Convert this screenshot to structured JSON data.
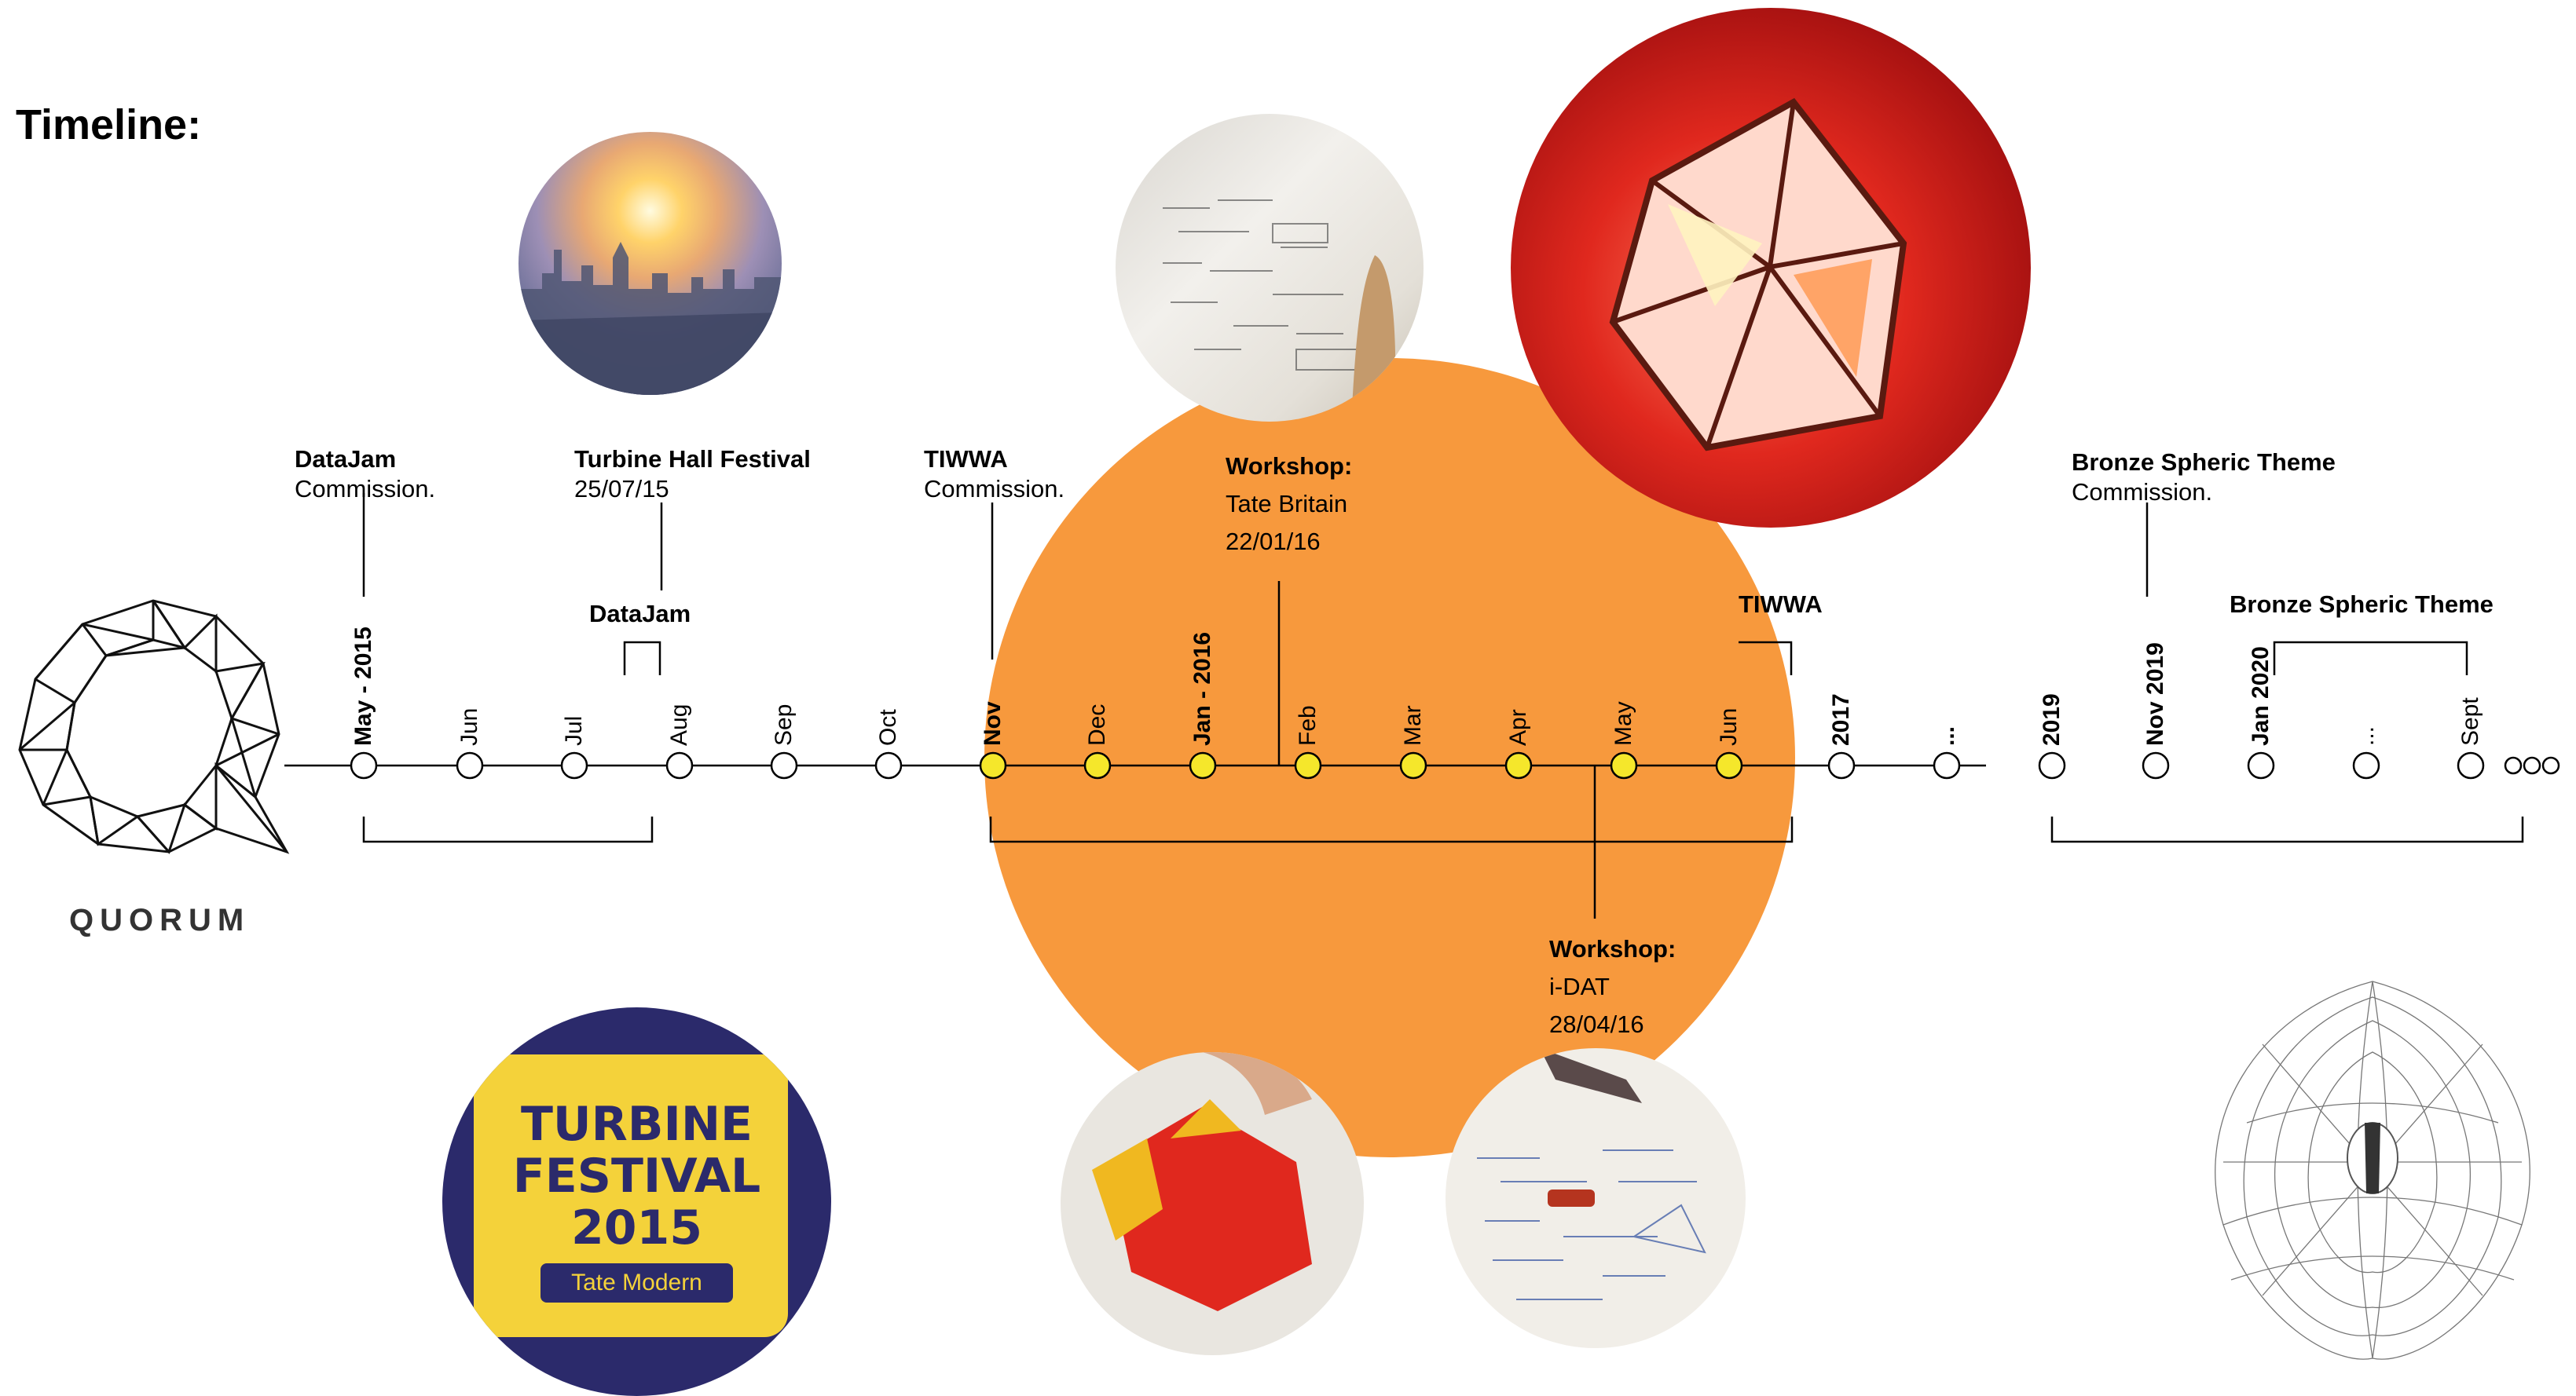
{
  "title": "Timeline:",
  "brand": {
    "name": "QUORUM"
  },
  "colors": {
    "highlight_circle": "#f7993d",
    "active_node": "#f5e72b",
    "node": "#ffffff",
    "line": "#000000"
  },
  "timeline": {
    "ticks": [
      {
        "label": "May - 2015",
        "bold": true,
        "active": false
      },
      {
        "label": "Jun",
        "bold": false,
        "active": false
      },
      {
        "label": "Jul",
        "bold": false,
        "active": false
      },
      {
        "label": "Aug",
        "bold": false,
        "active": false
      },
      {
        "label": "Sep",
        "bold": false,
        "active": false
      },
      {
        "label": "Oct",
        "bold": false,
        "active": false
      },
      {
        "label": "Nov",
        "bold": true,
        "active": true
      },
      {
        "label": "Dec",
        "bold": false,
        "active": true
      },
      {
        "label": "Jan - 2016",
        "bold": true,
        "active": true
      },
      {
        "label": "Feb",
        "bold": false,
        "active": true
      },
      {
        "label": "Mar",
        "bold": false,
        "active": true
      },
      {
        "label": "Apr",
        "bold": false,
        "active": true
      },
      {
        "label": "May",
        "bold": false,
        "active": true
      },
      {
        "label": "Jun",
        "bold": false,
        "active": true
      },
      {
        "label": "2017",
        "bold": true,
        "active": false
      },
      {
        "label": "...",
        "bold": true,
        "active": false
      },
      {
        "label": "2019",
        "bold": true,
        "active": false
      },
      {
        "label": "Nov 2019",
        "bold": true,
        "active": false
      },
      {
        "label": "Jan 2020",
        "bold": true,
        "active": false
      },
      {
        "label": "...",
        "bold": false,
        "active": false
      },
      {
        "label": "Sept",
        "bold": false,
        "active": false
      }
    ],
    "continuation": "ooo"
  },
  "events": {
    "datajam": {
      "title": "DataJam",
      "sub": "Commission."
    },
    "turbine": {
      "title": "Turbine Hall Festival",
      "sub": "25/07/15"
    },
    "tiwwa": {
      "title": "TIWWA",
      "sub": "Commission."
    },
    "workshop_tate": {
      "title": "Workshop:",
      "line1": "Tate Britain",
      "line2": "22/01/16"
    },
    "bronze": {
      "title": "Bronze Spheric Theme",
      "sub": "Commission."
    },
    "workshop_idat": {
      "title": "Workshop:",
      "line1": "i-DAT",
      "line2": "28/04/16"
    }
  },
  "bracket_labels": {
    "datajam": "DataJam",
    "tiwwa": "TIWWA",
    "bronze": "Bronze Spheric Theme"
  },
  "festival_poster": {
    "line1": "TURBINE",
    "line2": "FESTIVAL",
    "line3": "2015",
    "tag": "Tate Modern"
  }
}
